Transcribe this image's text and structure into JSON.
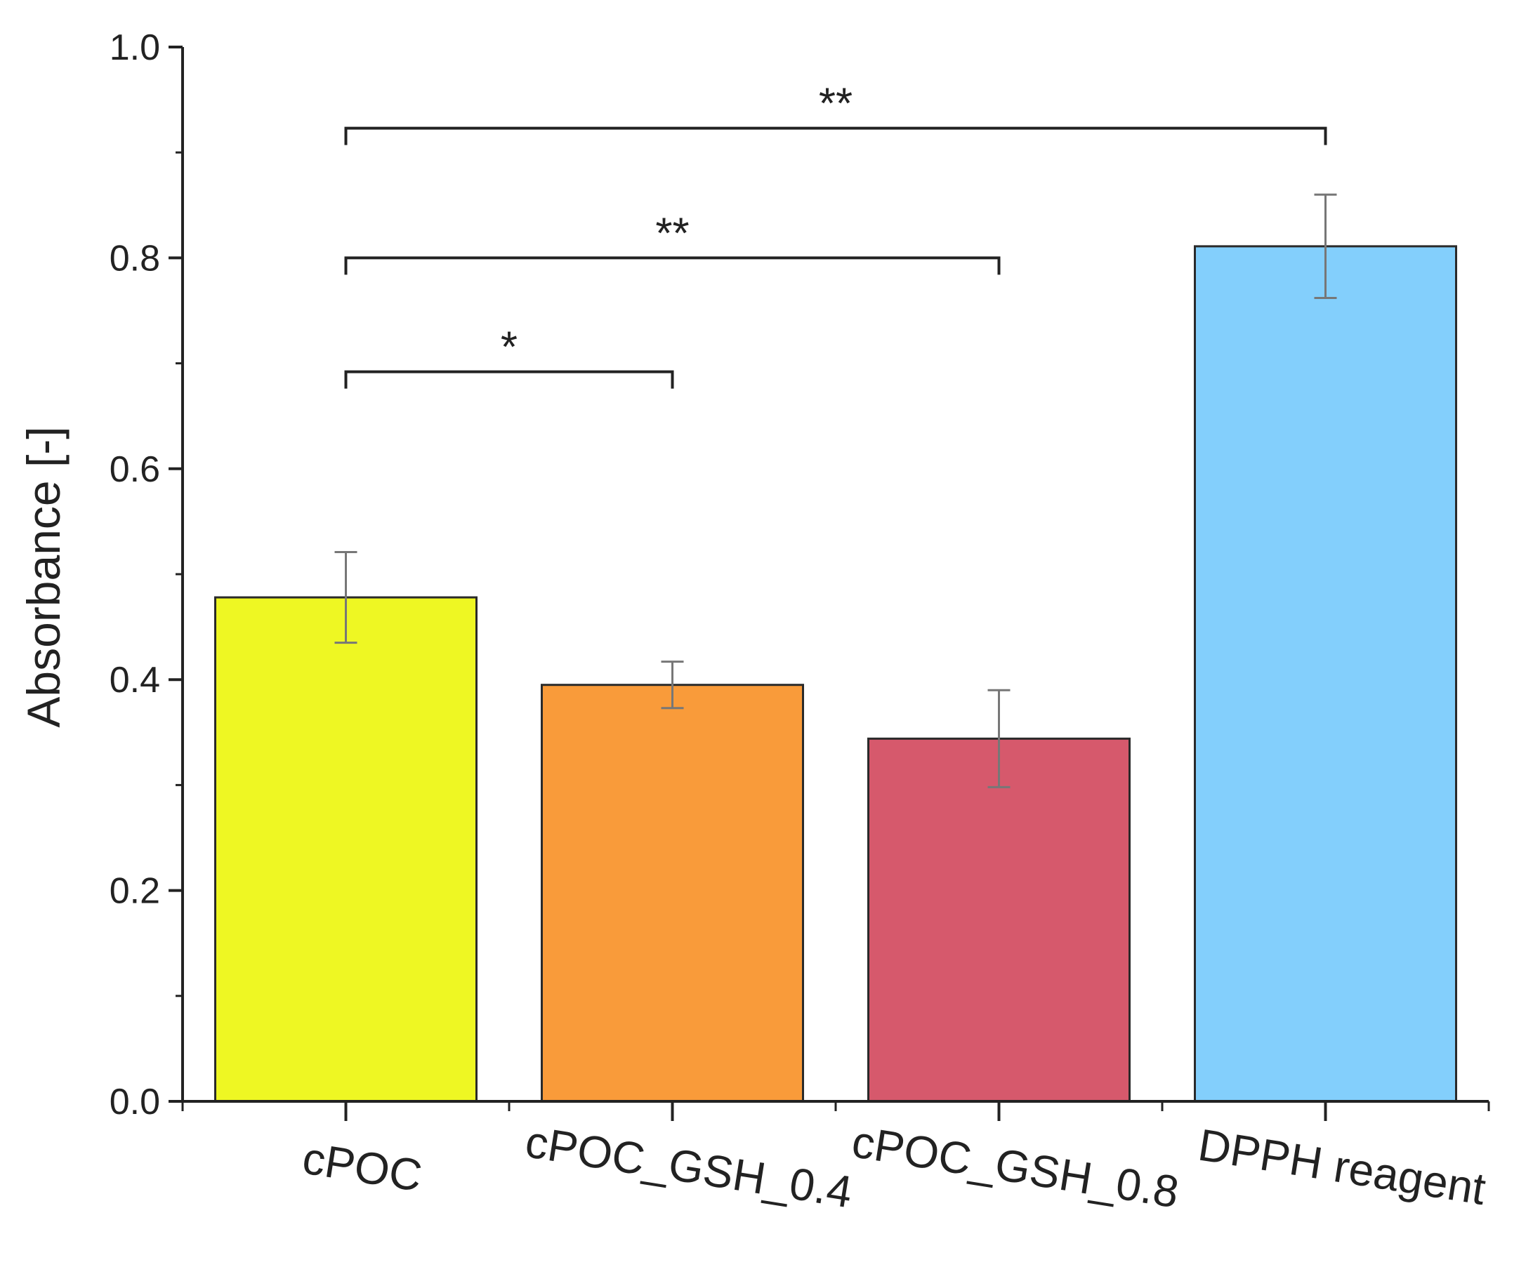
{
  "chart_data": {
    "type": "bar",
    "title": "",
    "xlabel": "",
    "ylabel": "Absorbance [-]",
    "ylim": [
      0,
      1.0
    ],
    "y_ticks": [
      "0.0",
      "0.2",
      "0.4",
      "0.6",
      "0.8",
      "1.0"
    ],
    "y_minor_step": 0.1,
    "grid": false,
    "categories": [
      "cPOC",
      "cPOC_GSH_0.4",
      "cPOC_GSH_0.8",
      "DPPH reagent"
    ],
    "values": [
      0.478,
      0.395,
      0.344,
      0.811
    ],
    "errors": [
      0.043,
      0.022,
      0.046,
      0.049
    ],
    "colors": [
      "#eef723",
      "#f99b3a",
      "#d6596c",
      "#83cffc"
    ],
    "significance": [
      {
        "from": 0,
        "to": 1,
        "label": "*"
      },
      {
        "from": 0,
        "to": 2,
        "label": "**"
      },
      {
        "from": 0,
        "to": 3,
        "label": "**"
      }
    ]
  }
}
